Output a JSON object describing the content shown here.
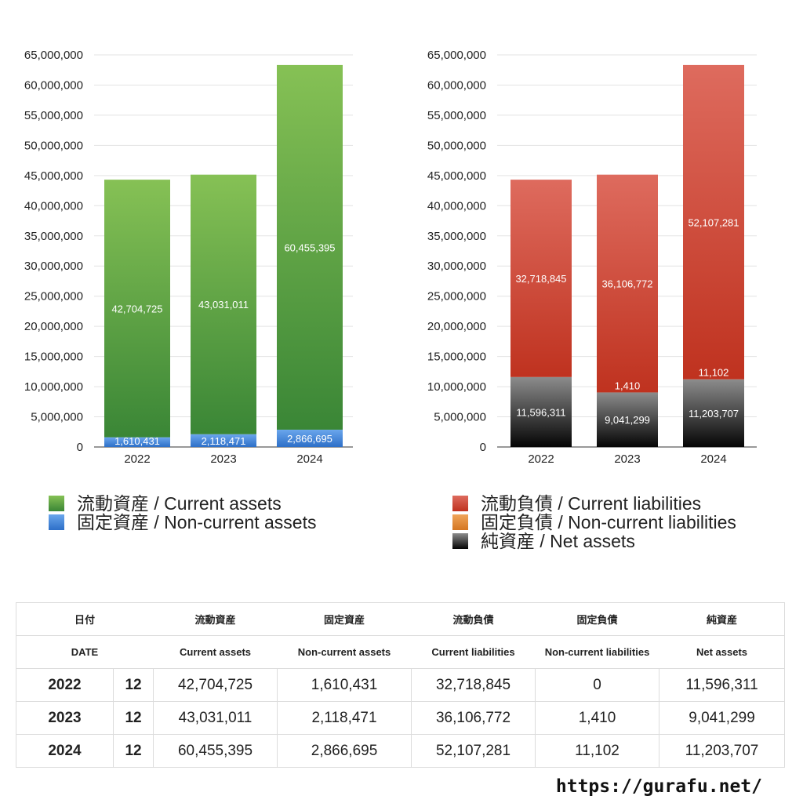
{
  "colors": {
    "current_assets": "#4c9a3c",
    "non_current_assets": "#3b7fd6",
    "current_liabilities": "#d24b3a",
    "non_current_liabilities": "#e08a38",
    "net_assets": "#2a2a2a"
  },
  "chart_data": [
    {
      "type": "bar",
      "stacked": true,
      "categories": [
        "2022",
        "2023",
        "2024"
      ],
      "ylim": [
        0,
        65000000
      ],
      "yticks": [
        0,
        5000000,
        10000000,
        15000000,
        20000000,
        25000000,
        30000000,
        35000000,
        40000000,
        45000000,
        50000000,
        55000000,
        60000000,
        65000000
      ],
      "ytick_labels": [
        "0",
        "5,000,000",
        "10,000,000",
        "15,000,000",
        "20,000,000",
        "25,000,000",
        "30,000,000",
        "35,000,000",
        "40,000,000",
        "45,000,000",
        "50,000,000",
        "55,000,000",
        "60,000,000",
        "65,000,000"
      ],
      "series": [
        {
          "name": "固定資産 / Non-current assets",
          "key": "non_current_assets",
          "values": [
            1610431,
            2118471,
            2866695
          ],
          "labels": [
            "1,610,431",
            "2,118,471",
            "2,866,695"
          ]
        },
        {
          "name": "流動資産 / Current assets",
          "key": "current_assets",
          "values": [
            42704725,
            43031011,
            60455395
          ],
          "labels": [
            "42,704,725",
            "43,031,011",
            "60,455,395"
          ]
        }
      ],
      "legend_order": [
        "current_assets",
        "non_current_assets"
      ]
    },
    {
      "type": "bar",
      "stacked": true,
      "categories": [
        "2022",
        "2023",
        "2024"
      ],
      "ylim": [
        0,
        65000000
      ],
      "yticks": [
        0,
        5000000,
        10000000,
        15000000,
        20000000,
        25000000,
        30000000,
        35000000,
        40000000,
        45000000,
        50000000,
        55000000,
        60000000,
        65000000
      ],
      "ytick_labels": [
        "0",
        "5,000,000",
        "10,000,000",
        "15,000,000",
        "20,000,000",
        "25,000,000",
        "30,000,000",
        "35,000,000",
        "40,000,000",
        "45,000,000",
        "50,000,000",
        "55,000,000",
        "60,000,000",
        "65,000,000"
      ],
      "series": [
        {
          "name": "純資産 / Net assets",
          "key": "net_assets",
          "values": [
            11596311,
            9041299,
            11203707
          ],
          "labels": [
            "11,596,311",
            "9,041,299",
            "11,203,707"
          ]
        },
        {
          "name": "固定負債 / Non-current liabilities",
          "key": "non_current_liabilities",
          "values": [
            0,
            1410,
            11102
          ],
          "labels": [
            "",
            "1,410",
            "11,102"
          ]
        },
        {
          "name": "流動負債 / Current liabilities",
          "key": "current_liabilities",
          "values": [
            32718845,
            36106772,
            52107281
          ],
          "labels": [
            "32,718,845",
            "36,106,772",
            "52,107,281"
          ]
        }
      ],
      "legend_order": [
        "current_liabilities",
        "non_current_liabilities",
        "net_assets"
      ]
    }
  ],
  "legend": {
    "current_assets": "流動資産 / Current assets",
    "non_current_assets": "固定資産 / Non-current assets",
    "current_liabilities": "流動負債 / Current liabilities",
    "non_current_liabilities": "固定負債 / Non-current liabilities",
    "net_assets": "純資産 / Net assets"
  },
  "table": {
    "header_jp": [
      "日付",
      "流動資産",
      "固定資産",
      "流動負債",
      "固定負債",
      "純資産"
    ],
    "header_en": [
      "DATE",
      "Current assets",
      "Non-current assets",
      "Current liabilities",
      "Non-current liabilities",
      "Net assets"
    ],
    "rows": [
      {
        "year": "2022",
        "month": "12",
        "values": [
          "42,704,725",
          "1,610,431",
          "32,718,845",
          "0",
          "11,596,311"
        ]
      },
      {
        "year": "2023",
        "month": "12",
        "values": [
          "43,031,011",
          "2,118,471",
          "36,106,772",
          "1,410",
          "9,041,299"
        ]
      },
      {
        "year": "2024",
        "month": "12",
        "values": [
          "60,455,395",
          "2,866,695",
          "52,107,281",
          "11,102",
          "11,203,707"
        ]
      }
    ]
  },
  "footer": {
    "url": "https://gurafu.net/"
  }
}
